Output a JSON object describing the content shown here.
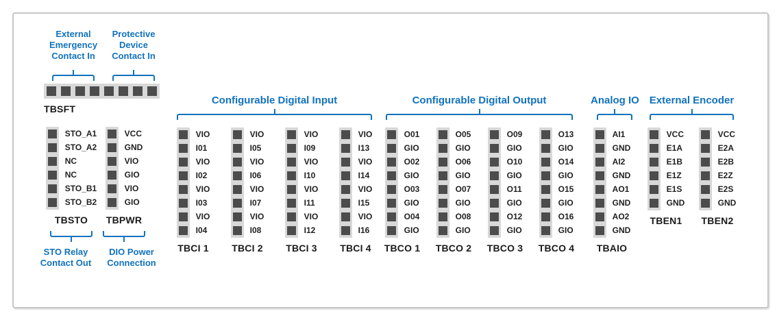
{
  "colors": {
    "accent_blue": "#1172BD",
    "pin_fill": "#4C4C4C",
    "pin_strip": "#D8D8D8",
    "label_text": "#1A1A1A",
    "frame_border": "#C6C6C6",
    "background": "#FFFFFF"
  },
  "safety_group": {
    "captions": [
      {
        "lines": [
          "External",
          "Emergency",
          "Contact In"
        ]
      },
      {
        "lines": [
          "Protective",
          "Device",
          "Contact In"
        ]
      }
    ],
    "terminal_name": "TBSFT",
    "pin_count": 8
  },
  "sto_group": {
    "terminals": [
      {
        "name": "TBSTO",
        "pins": [
          "STO_A1",
          "STO_A2",
          "NC",
          "NC",
          "STO_B1",
          "STO_B2"
        ],
        "caption_lines": [
          "STO Relay",
          "Contact Out"
        ]
      },
      {
        "name": "TBPWR",
        "pins": [
          "VCC",
          "GND",
          "VIO",
          "GIO",
          "VIO",
          "GIO"
        ],
        "caption_lines": [
          "DIO Power",
          "Connection"
        ]
      }
    ]
  },
  "sections": [
    {
      "heading": "Configurable Digital Input",
      "terminals": [
        {
          "name": "TBCI 1",
          "pins": [
            "VIO",
            "I01",
            "VIO",
            "I02",
            "VIO",
            "I03",
            "VIO",
            "I04"
          ]
        },
        {
          "name": "TBCI 2",
          "pins": [
            "VIO",
            "I05",
            "VIO",
            "I06",
            "VIO",
            "I07",
            "VIO",
            "I08"
          ]
        },
        {
          "name": "TBCI 3",
          "pins": [
            "VIO",
            "I09",
            "VIO",
            "I10",
            "VIO",
            "I11",
            "VIO",
            "I12"
          ]
        },
        {
          "name": "TBCI 4",
          "pins": [
            "VIO",
            "I13",
            "VIO",
            "I14",
            "VIO",
            "I15",
            "VIO",
            "I16"
          ]
        }
      ]
    },
    {
      "heading": "Configurable Digital Output",
      "terminals": [
        {
          "name": "TBCO 1",
          "pins": [
            "O01",
            "GIO",
            "O02",
            "GIO",
            "O03",
            "GIO",
            "O04",
            "GIO"
          ]
        },
        {
          "name": "TBCO 2",
          "pins": [
            "O05",
            "GIO",
            "O06",
            "GIO",
            "O07",
            "GIO",
            "O08",
            "GIO"
          ]
        },
        {
          "name": "TBCO 3",
          "pins": [
            "O09",
            "GIO",
            "O10",
            "GIO",
            "O11",
            "GIO",
            "O12",
            "GIO"
          ]
        },
        {
          "name": "TBCO 4",
          "pins": [
            "O13",
            "GIO",
            "O14",
            "GIO",
            "O15",
            "GIO",
            "O16",
            "GIO"
          ]
        }
      ]
    },
    {
      "heading": "Analog IO",
      "terminals": [
        {
          "name": "TBAIO",
          "pins": [
            "AI1",
            "GND",
            "AI2",
            "GND",
            "AO1",
            "GND",
            "AO2",
            "GND"
          ]
        }
      ]
    },
    {
      "heading": "External Encoder",
      "terminals": [
        {
          "name": "TBEN1",
          "pins": [
            "VCC",
            "E1A",
            "E1B",
            "E1Z",
            "E1S",
            "GND"
          ]
        },
        {
          "name": "TBEN2",
          "pins": [
            "VCC",
            "E2A",
            "E2B",
            "E2Z",
            "E2S",
            "GND"
          ]
        }
      ]
    }
  ]
}
